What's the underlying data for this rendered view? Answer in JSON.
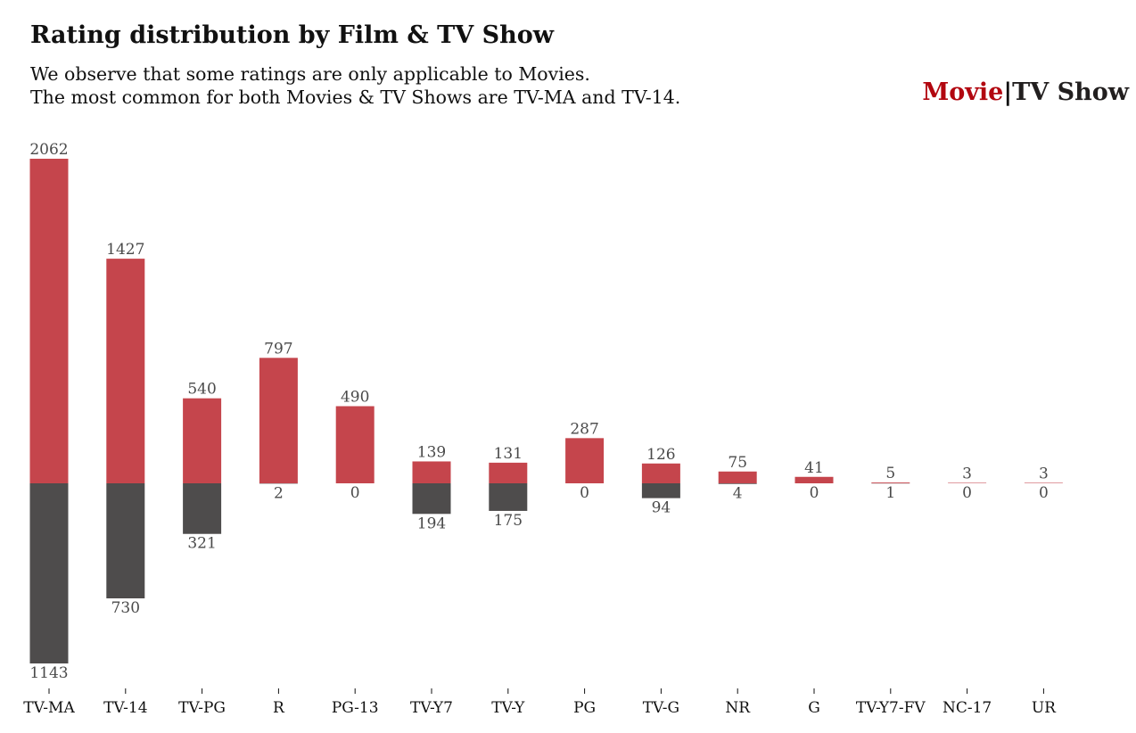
{
  "title": "Rating distribution by Film & TV Show",
  "subtitle_lines": [
    "We observe that some ratings are only applicable to Movies.",
    "The most common for both Movies & TV Shows are TV-MA and TV-14."
  ],
  "legend": {
    "movie": "Movie",
    "separator": "|",
    "tv": "TV Show"
  },
  "colors": {
    "movie": "#b20710",
    "tv": "#221f1f"
  },
  "chart_data": {
    "type": "bar",
    "title": "Rating distribution by Film & TV Show",
    "categories": [
      "TV-MA",
      "TV-14",
      "TV-PG",
      "R",
      "PG-13",
      "TV-Y7",
      "TV-Y",
      "PG",
      "TV-G",
      "NR",
      "G",
      "TV-Y7-FV",
      "NC-17",
      "UR"
    ],
    "series": [
      {
        "name": "Movie",
        "values": [
          2062,
          1427,
          540,
          797,
          490,
          139,
          131,
          287,
          126,
          75,
          41,
          5,
          3,
          3
        ]
      },
      {
        "name": "TV Show",
        "values": [
          1143,
          730,
          321,
          2,
          0,
          194,
          175,
          0,
          94,
          4,
          0,
          1,
          0,
          0
        ]
      }
    ],
    "layout": "diverging",
    "ylim": [
      -1143,
      2062
    ],
    "grid": false,
    "legend_placement": "top-right",
    "xlabel": "",
    "ylabel": ""
  }
}
